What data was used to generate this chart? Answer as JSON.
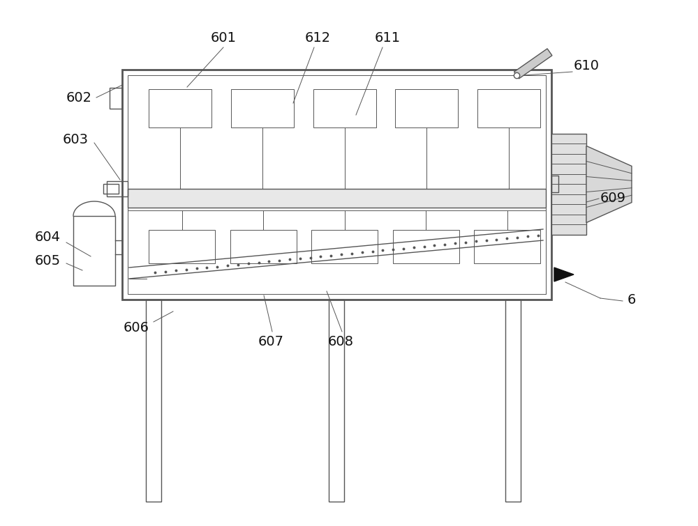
{
  "bg_color": "#ffffff",
  "line_color": "#555555",
  "lw_outer": 2.0,
  "lw_inner": 1.0,
  "lw_thin": 0.7,
  "label_fontsize": 14,
  "label_color": "#111111",
  "fig_w": 10.0,
  "fig_h": 7.55
}
